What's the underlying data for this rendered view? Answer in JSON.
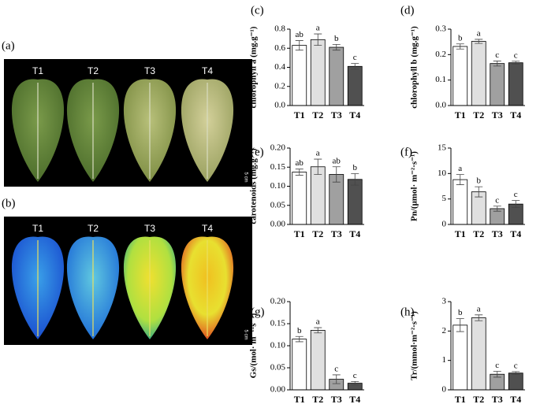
{
  "photos": [
    {
      "label": "(a)",
      "samples": [
        "T1",
        "T2",
        "T3",
        "T4"
      ],
      "scale": "5 cm"
    },
    {
      "label": "(b)",
      "samples": [
        "T1",
        "T2",
        "T3",
        "T4"
      ],
      "scale": "5 cm"
    }
  ],
  "chart_data": [
    {
      "type": "bar",
      "label": "(c)",
      "y_label": "chlorophyll a (mg.g⁻¹)",
      "categories": [
        "T1",
        "T2",
        "T3",
        "T4"
      ],
      "values": [
        0.63,
        0.69,
        0.61,
        0.41
      ],
      "errors": [
        0.05,
        0.06,
        0.03,
        0.03
      ],
      "annotations": [
        "ab",
        "a",
        "b",
        "c"
      ],
      "colors": [
        "#ffffff",
        "#e0e0e0",
        "#a0a0a0",
        "#505050"
      ],
      "ylim": [
        0,
        0.8
      ],
      "yticks": [
        {
          "value": 0,
          "label": "0.0"
        },
        0.2,
        0.4,
        0.6,
        0.8
      ]
    },
    {
      "type": "bar",
      "label": "(d)",
      "y_label": "chlorophyll b (mg.g⁻¹)",
      "categories": [
        "T1",
        "T2",
        "T3",
        "T4"
      ],
      "values": [
        0.232,
        0.252,
        0.165,
        0.168
      ],
      "errors": [
        0.01,
        0.008,
        0.01,
        0.006
      ],
      "annotations": [
        "b",
        "a",
        "c",
        "c"
      ],
      "colors": [
        "#ffffff",
        "#e0e0e0",
        "#a0a0a0",
        "#505050"
      ],
      "ylim": [
        0,
        0.3
      ],
      "yticks": [
        {
          "value": 0,
          "label": "0.0"
        },
        0.1,
        0.2,
        0.3
      ]
    },
    {
      "type": "bar",
      "label": "(e)",
      "y_label": "carotenoids (mg.g⁻¹)",
      "categories": [
        "T1",
        "T2",
        "T3",
        "T4"
      ],
      "values": [
        0.137,
        0.151,
        0.131,
        0.118
      ],
      "errors": [
        0.008,
        0.02,
        0.02,
        0.015
      ],
      "annotations": [
        "ab",
        "a",
        "ab",
        "b"
      ],
      "colors": [
        "#ffffff",
        "#e0e0e0",
        "#a0a0a0",
        "#505050"
      ],
      "ylim": [
        0,
        0.2
      ],
      "yticks": [
        {
          "value": 0,
          "label": "0.00"
        },
        0.05,
        {
          "value": 0.1,
          "label": "0.10"
        },
        0.15,
        {
          "value": 0.2,
          "label": "0.20"
        }
      ]
    },
    {
      "type": "bar",
      "label": "(f)",
      "y_label": "Pn/(μmol· m⁻²·s⁻¹)",
      "categories": [
        "T1",
        "T2",
        "T3",
        "T4"
      ],
      "values": [
        8.8,
        6.4,
        3.1,
        4.0
      ],
      "errors": [
        1.0,
        1.0,
        0.5,
        0.7
      ],
      "annotations": [
        "a",
        "b",
        "c",
        "c"
      ],
      "colors": [
        "#ffffff",
        "#e0e0e0",
        "#a0a0a0",
        "#505050"
      ],
      "ylim": [
        0,
        15
      ],
      "yticks": [
        0,
        5,
        10,
        15
      ]
    },
    {
      "type": "bar",
      "label": "(g)",
      "y_label": "Gs/(mol· m⁻²·s⁻¹)",
      "categories": [
        "T1",
        "T2",
        "T3",
        "T4"
      ],
      "values": [
        0.115,
        0.135,
        0.024,
        0.015
      ],
      "errors": [
        0.006,
        0.006,
        0.01,
        0.004
      ],
      "annotations": [
        "b",
        "a",
        "c",
        "c"
      ],
      "colors": [
        "#ffffff",
        "#e0e0e0",
        "#a0a0a0",
        "#505050"
      ],
      "ylim": [
        0,
        0.2
      ],
      "yticks": [
        {
          "value": 0,
          "label": "0.00"
        },
        0.05,
        {
          "value": 0.1,
          "label": "0.10"
        },
        0.15,
        {
          "value": 0.2,
          "label": "0.20"
        }
      ]
    },
    {
      "type": "bar",
      "label": "(h)",
      "y_label": "Tr/(mmol·m⁻²·s⁻¹)",
      "categories": [
        "T1",
        "T2",
        "T3",
        "T4"
      ],
      "values": [
        2.2,
        2.45,
        0.53,
        0.57
      ],
      "errors": [
        0.22,
        0.1,
        0.1,
        0.05
      ],
      "annotations": [
        "b",
        "a",
        "c",
        "c"
      ],
      "colors": [
        "#ffffff",
        "#e0e0e0",
        "#a0a0a0",
        "#505050"
      ],
      "ylim": [
        0,
        3
      ],
      "yticks": [
        0,
        1,
        2,
        3
      ]
    }
  ]
}
